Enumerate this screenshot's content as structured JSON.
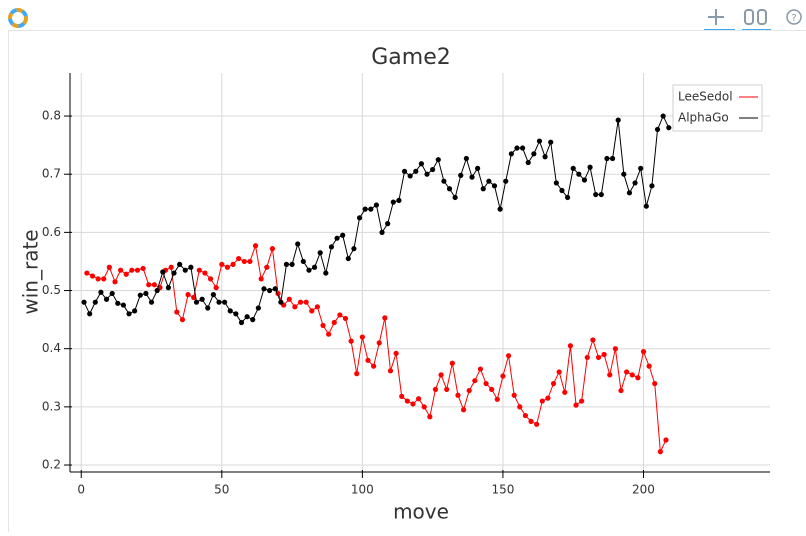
{
  "chart_data": {
    "type": "line",
    "title": "Game2",
    "x_label": "move",
    "y_label": "win_rate",
    "xlim": [
      -4,
      245
    ],
    "ylim": [
      0.188,
      0.874
    ],
    "xticks": [
      0,
      50,
      100,
      150,
      200
    ],
    "yticks": [
      0.2,
      0.3,
      0.4,
      0.5,
      0.6,
      0.7,
      0.8
    ],
    "grid": true,
    "legend": "top-right",
    "series": [
      {
        "name": "LeeSedol",
        "color": "#ff0000",
        "x": [
          2,
          4,
          6,
          8,
          10,
          12,
          14,
          16,
          18,
          20,
          22,
          24,
          26,
          28,
          30,
          32,
          34,
          36,
          38,
          40,
          42,
          44,
          46,
          48,
          50,
          52,
          54,
          56,
          58,
          60,
          62,
          64,
          66,
          68,
          70,
          72,
          74,
          76,
          78,
          80,
          82,
          84,
          86,
          88,
          90,
          92,
          94,
          96,
          98,
          100,
          102,
          104,
          106,
          108,
          110,
          112,
          114,
          116,
          118,
          120,
          122,
          124,
          126,
          128,
          130,
          132,
          134,
          136,
          138,
          140,
          142,
          144,
          146,
          148,
          150,
          152,
          154,
          156,
          158,
          160,
          162,
          164,
          166,
          168,
          170,
          172,
          174,
          176,
          178,
          180,
          182,
          184,
          186,
          188,
          190,
          192,
          194,
          196,
          198,
          200,
          202,
          204,
          206,
          208
        ],
        "values": [
          0.53,
          0.525,
          0.52,
          0.52,
          0.54,
          0.515,
          0.535,
          0.528,
          0.535,
          0.535,
          0.538,
          0.51,
          0.51,
          0.505,
          0.535,
          0.54,
          0.463,
          0.45,
          0.493,
          0.488,
          0.535,
          0.53,
          0.52,
          0.505,
          0.545,
          0.54,
          0.545,
          0.555,
          0.55,
          0.55,
          0.577,
          0.52,
          0.54,
          0.572,
          0.495,
          0.475,
          0.485,
          0.472,
          0.48,
          0.48,
          0.465,
          0.472,
          0.44,
          0.425,
          0.445,
          0.458,
          0.452,
          0.413,
          0.357,
          0.42,
          0.38,
          0.37,
          0.41,
          0.453,
          0.362,
          0.392,
          0.318,
          0.31,
          0.305,
          0.314,
          0.3,
          0.283,
          0.33,
          0.355,
          0.33,
          0.375,
          0.32,
          0.295,
          0.328,
          0.345,
          0.365,
          0.34,
          0.33,
          0.313,
          0.353,
          0.388,
          0.32,
          0.3,
          0.285,
          0.275,
          0.27,
          0.31,
          0.315,
          0.34,
          0.36,
          0.325,
          0.405,
          0.303,
          0.31,
          0.385,
          0.415,
          0.385,
          0.39,
          0.355,
          0.4,
          0.328,
          0.36,
          0.355,
          0.35,
          0.395,
          0.37,
          0.34,
          0.223,
          0.243
        ]
      },
      {
        "name": "AlphaGo",
        "color": "#000000",
        "x": [
          1,
          3,
          5,
          7,
          9,
          11,
          13,
          15,
          17,
          19,
          21,
          23,
          25,
          27,
          29,
          31,
          33,
          35,
          37,
          39,
          41,
          43,
          45,
          47,
          49,
          51,
          53,
          55,
          57,
          59,
          61,
          63,
          65,
          67,
          69,
          71,
          73,
          75,
          77,
          79,
          81,
          83,
          85,
          87,
          89,
          91,
          93,
          95,
          97,
          99,
          101,
          103,
          105,
          107,
          109,
          111,
          113,
          115,
          117,
          119,
          121,
          123,
          125,
          127,
          129,
          131,
          133,
          135,
          137,
          139,
          141,
          143,
          145,
          147,
          149,
          151,
          153,
          155,
          157,
          159,
          161,
          163,
          165,
          167,
          169,
          171,
          173,
          175,
          177,
          179,
          181,
          183,
          185,
          187,
          189,
          191,
          193,
          195,
          197,
          199,
          201,
          203,
          205,
          207,
          209
        ],
        "values": [
          0.48,
          0.46,
          0.48,
          0.497,
          0.485,
          0.495,
          0.478,
          0.475,
          0.46,
          0.465,
          0.492,
          0.495,
          0.48,
          0.5,
          0.532,
          0.505,
          0.53,
          0.545,
          0.535,
          0.54,
          0.48,
          0.485,
          0.47,
          0.493,
          0.48,
          0.48,
          0.465,
          0.46,
          0.445,
          0.455,
          0.45,
          0.47,
          0.503,
          0.5,
          0.503,
          0.48,
          0.545,
          0.545,
          0.58,
          0.55,
          0.535,
          0.54,
          0.565,
          0.53,
          0.575,
          0.59,
          0.595,
          0.555,
          0.572,
          0.625,
          0.64,
          0.64,
          0.647,
          0.6,
          0.615,
          0.652,
          0.655,
          0.705,
          0.697,
          0.705,
          0.718,
          0.7,
          0.708,
          0.725,
          0.688,
          0.675,
          0.66,
          0.698,
          0.727,
          0.695,
          0.71,
          0.675,
          0.688,
          0.68,
          0.64,
          0.688,
          0.735,
          0.745,
          0.745,
          0.72,
          0.735,
          0.757,
          0.73,
          0.755,
          0.685,
          0.672,
          0.66,
          0.71,
          0.7,
          0.69,
          0.712,
          0.665,
          0.665,
          0.727,
          0.727,
          0.793,
          0.7,
          0.668,
          0.685,
          0.71,
          0.645,
          0.68,
          0.777,
          0.8,
          0.78
        ]
      }
    ]
  }
}
